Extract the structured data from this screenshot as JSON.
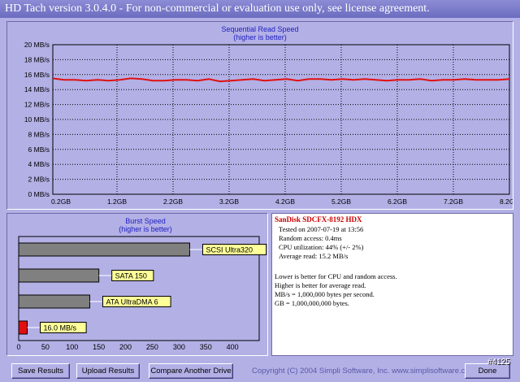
{
  "window": {
    "title": "HD Tach version 3.0.4.0  - For non-commercial or evaluation use only, see license agreement."
  },
  "chart_data": [
    {
      "type": "line",
      "title": "Sequential Read Speed",
      "subtitle": "(higher is better)",
      "xlabel": "",
      "ylabel": "",
      "ylim": [
        0,
        20
      ],
      "xlim": [
        0,
        8.2
      ],
      "y_ticks": [
        "0 MB/s",
        "2 MB/s",
        "4 MB/s",
        "6 MB/s",
        "8 MB/s",
        "10 MB/s",
        "12 MB/s",
        "14 MB/s",
        "16 MB/s",
        "18 MB/s",
        "20 MB/s"
      ],
      "x_ticks": [
        "0.2GB",
        "1.2GB",
        "2.2GB",
        "3.2GB",
        "4.2GB",
        "5.2GB",
        "6.2GB",
        "7.2GB",
        "8.2GB"
      ],
      "grid": true,
      "series": [
        {
          "color": "#e01010",
          "x": [
            0,
            0.2,
            0.4,
            0.6,
            0.8,
            1.0,
            1.2,
            1.4,
            1.6,
            1.8,
            2.0,
            2.2,
            2.4,
            2.6,
            2.8,
            3.0,
            3.2,
            3.4,
            3.6,
            3.8,
            4.0,
            4.2,
            4.4,
            4.6,
            4.8,
            5.0,
            5.2,
            5.4,
            5.6,
            5.8,
            6.0,
            6.2,
            6.4,
            6.6,
            6.8,
            7.0,
            7.2,
            7.4,
            7.6,
            7.8,
            8.0,
            8.2
          ],
          "values": [
            15.5,
            15.3,
            15.3,
            15.2,
            15.3,
            15.2,
            15.3,
            15.5,
            15.4,
            15.2,
            15.2,
            15.3,
            15.3,
            15.2,
            15.4,
            15.1,
            15.2,
            15.3,
            15.4,
            15.2,
            15.3,
            15.4,
            15.2,
            15.4,
            15.4,
            15.3,
            15.4,
            15.3,
            15.4,
            15.3,
            15.2,
            15.3,
            15.3,
            15.4,
            15.2,
            15.3,
            15.3,
            15.4,
            15.3,
            15.3,
            15.3,
            15.4
          ]
        }
      ]
    },
    {
      "type": "bar",
      "title": "Burst Speed",
      "subtitle": "(higher is better)",
      "orientation": "horizontal",
      "xlim": [
        0,
        450
      ],
      "x_ticks": [
        "0",
        "50",
        "100",
        "150",
        "200",
        "250",
        "300",
        "350",
        "400"
      ],
      "categories": [
        "SCSI Ultra320",
        "SATA 150",
        "ATA UltraDMA 6",
        "16.0 MB/s"
      ],
      "values": [
        320,
        150,
        133,
        16
      ],
      "colors": [
        "#808080",
        "#808080",
        "#808080",
        "#e01010"
      ],
      "label_color": "#ffff99"
    }
  ],
  "info": {
    "drive_name": "SanDisk SDCFX-8192 HDX",
    "tested_on": "Tested on 2007-07-19 at 13:56",
    "random_access": "Random access: 0.4ms",
    "cpu_utilization": "CPU utilization: 44% (+/- 2%)",
    "average_read": "Average read: 15.2 MB/s",
    "note1": "Lower is better for CPU and random access.",
    "note2": "Higher is better for average read.",
    "note3": "MB/s = 1,000,000 bytes per second.",
    "note4": "GB = 1,000,000,000 bytes."
  },
  "buttons": {
    "save_results": "Save Results",
    "upload_results": "Upload Results",
    "compare": "Compare Another Drive",
    "done": "Done"
  },
  "footer": {
    "copyright": "Copyright (C) 2004 Simpli Software, Inc. www.simplisoftware.com",
    "corner_tag": "#4125"
  }
}
